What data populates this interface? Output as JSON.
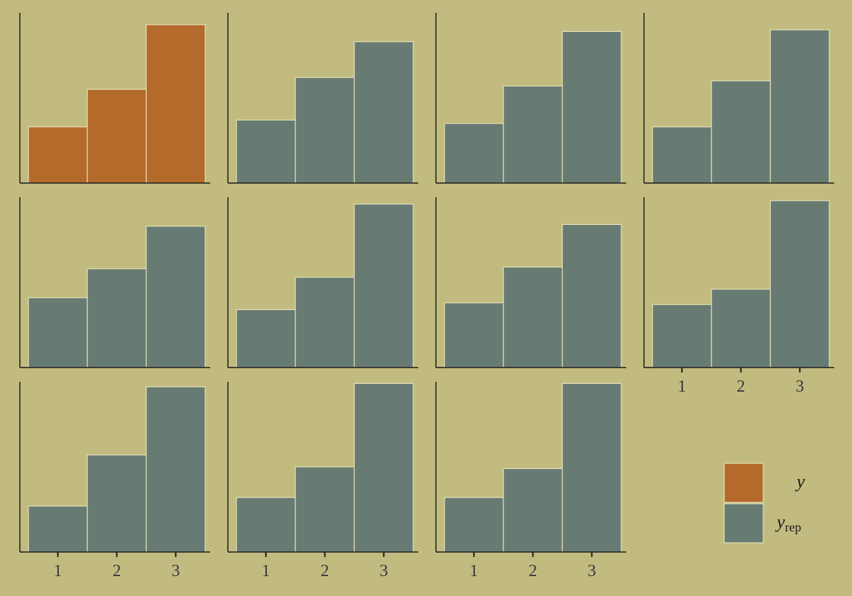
{
  "colors": {
    "background": "#c2bb7f",
    "y": "#b36a2b",
    "yrep": "#677b73",
    "bar_border": "#e6e0b6",
    "axis": "#1a1a1a"
  },
  "chart_data": {
    "type": "bar",
    "layout": "facet-grid",
    "categories": [
      "1",
      "2",
      "3"
    ],
    "ylim": [
      0,
      1
    ],
    "grid": false,
    "legend_position": "bottom-right",
    "legend": [
      {
        "key": "y",
        "label": "y",
        "sub": ""
      },
      {
        "key": "yrep",
        "label": "y",
        "sub": "rep"
      }
    ],
    "panels": [
      {
        "series": "y",
        "values": [
          0.33,
          0.55,
          0.93
        ]
      },
      {
        "series": "yrep",
        "values": [
          0.37,
          0.62,
          0.83
        ]
      },
      {
        "series": "yrep",
        "values": [
          0.35,
          0.57,
          0.89
        ]
      },
      {
        "series": "yrep",
        "values": [
          0.33,
          0.6,
          0.9
        ]
      },
      {
        "series": "yrep",
        "values": [
          0.41,
          0.58,
          0.83
        ]
      },
      {
        "series": "yrep",
        "values": [
          0.34,
          0.53,
          0.96
        ]
      },
      {
        "series": "yrep",
        "values": [
          0.38,
          0.59,
          0.84
        ]
      },
      {
        "series": "yrep",
        "values": [
          0.37,
          0.46,
          0.98
        ]
      },
      {
        "series": "yrep",
        "values": [
          0.27,
          0.57,
          0.97
        ]
      },
      {
        "series": "yrep",
        "values": [
          0.32,
          0.5,
          0.99
        ]
      },
      {
        "series": "yrep",
        "values": [
          0.32,
          0.49,
          0.99
        ]
      }
    ]
  }
}
